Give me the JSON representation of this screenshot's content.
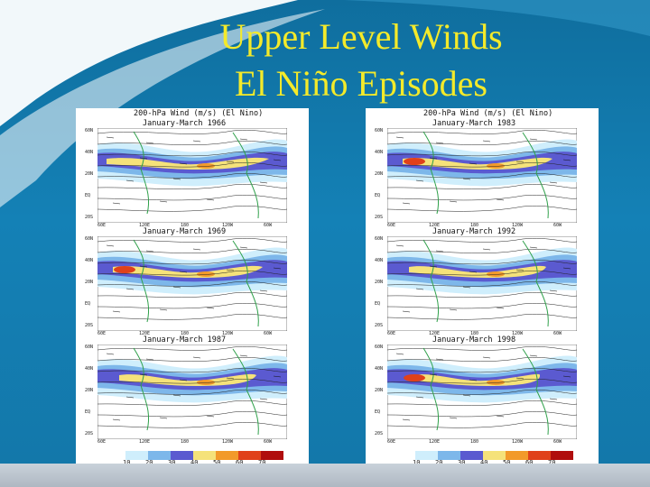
{
  "slide": {
    "title_line1": "Upper Level Winds",
    "title_line2": "El Niño Episodes"
  },
  "header_top": "200-hPa Wind (m/s) (El Nino)",
  "left": {
    "panels": [
      {
        "label": "January-March 1966"
      },
      {
        "label": "January-March 1969"
      },
      {
        "label": "January-March 1987"
      }
    ]
  },
  "right": {
    "panels": [
      {
        "label": "January-March 1983"
      },
      {
        "label": "January-March 1992"
      },
      {
        "label": "January-March 1998"
      }
    ]
  },
  "colorbar": {
    "ticks": [
      "10",
      "20",
      "30",
      "40",
      "50",
      "60",
      "70"
    ],
    "colors": [
      "#ffffff",
      "#cfeefc",
      "#7db7ea",
      "#5b5ad0",
      "#f5e27a",
      "#f29a2a",
      "#e0411a",
      "#b00d0d"
    ]
  },
  "axis": {
    "y": [
      "60N",
      "40N",
      "20N",
      "EQ",
      "20S"
    ],
    "x": [
      "60E",
      "120E",
      "180",
      "120W",
      "60W"
    ]
  },
  "colors": {
    "title": "#f4ea2a",
    "background": "#1481b6"
  }
}
